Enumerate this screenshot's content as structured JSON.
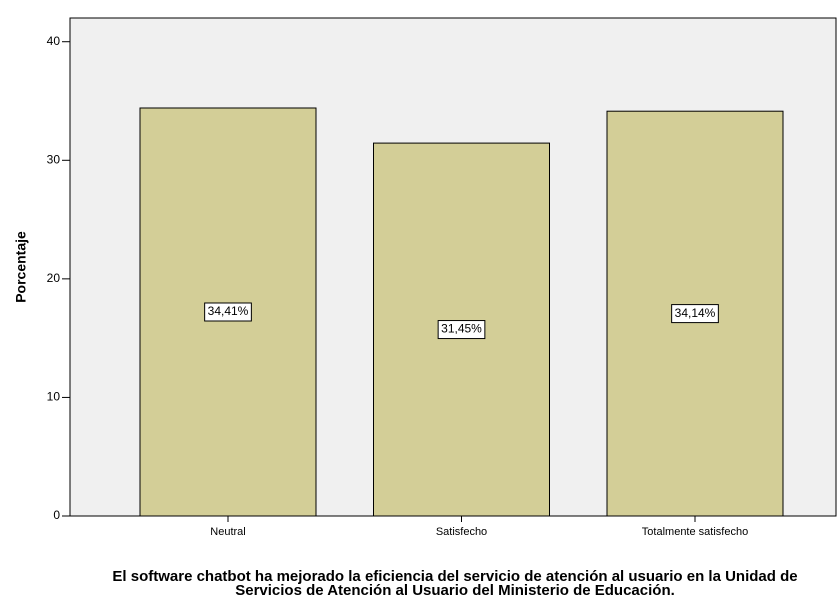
{
  "chart_data": {
    "type": "bar",
    "x_label": "El software chatbot ha mejorado la eficiencia del servicio de atención al usuario en la Unidad de Servicios de Atención al Usuario del Ministerio de Educación.",
    "y_label": "Porcentaje",
    "categories": [
      "Neutral",
      "Satisfecho",
      "Totalmente satisfecho"
    ],
    "values": [
      34.41,
      31.45,
      34.14
    ],
    "value_labels": [
      "34,41%",
      "31,45%",
      "34,14%"
    ],
    "color": "#d3ce97",
    "ylim": [
      0,
      42
    ],
    "yticks": [
      0,
      10,
      20,
      30,
      40
    ],
    "grid": false
  }
}
